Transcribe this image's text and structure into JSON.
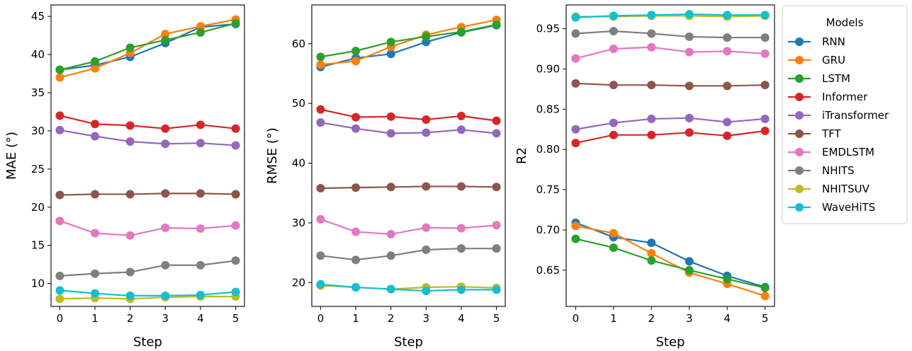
{
  "legend": {
    "title": "Models",
    "entries": [
      "RNN",
      "GRU",
      "LSTM",
      "Informer",
      "iTransformer",
      "TFT",
      "EMDLSTM",
      "NHITS",
      "NHITSUV",
      "WaveHiTS"
    ]
  },
  "colors": {
    "RNN": "#1f77b4",
    "GRU": "#ff7f0e",
    "LSTM": "#2ca02c",
    "Informer": "#d62728",
    "iTransformer": "#9467bd",
    "TFT": "#8c564b",
    "EMDLSTM": "#e377c2",
    "NHITS": "#7f7f7f",
    "NHITSUV": "#bcbd22",
    "WaveHiTS": "#17becf"
  },
  "chart_data": [
    {
      "type": "line",
      "xlabel": "Step",
      "ylabel": "MAE (°)",
      "x": [
        0,
        1,
        2,
        3,
        4,
        5
      ],
      "ylim": [
        7.0,
        46.5
      ],
      "yticks": [
        10,
        15,
        20,
        25,
        30,
        35,
        40,
        45
      ],
      "ytick_labels": [
        "10",
        "15",
        "20",
        "25",
        "30",
        "35",
        "40",
        "45"
      ],
      "xtick_labels": [
        "0",
        "1",
        "2",
        "3",
        "4",
        "5"
      ],
      "series": [
        {
          "name": "RNN",
          "values": [
            38.0,
            38.6,
            39.7,
            41.5,
            43.6,
            44.0
          ]
        },
        {
          "name": "GRU",
          "values": [
            37.0,
            38.2,
            40.2,
            42.7,
            43.7,
            44.6
          ]
        },
        {
          "name": "LSTM",
          "values": [
            38.0,
            39.1,
            40.9,
            41.9,
            42.9,
            44.1
          ]
        },
        {
          "name": "Informer",
          "values": [
            32.0,
            30.9,
            30.7,
            30.3,
            30.8,
            30.3
          ]
        },
        {
          "name": "iTransformer",
          "values": [
            30.1,
            29.3,
            28.6,
            28.3,
            28.4,
            28.1
          ]
        },
        {
          "name": "TFT",
          "values": [
            21.6,
            21.7,
            21.7,
            21.8,
            21.8,
            21.7
          ]
        },
        {
          "name": "EMDLSTM",
          "values": [
            18.2,
            16.6,
            16.3,
            17.3,
            17.2,
            17.6
          ]
        },
        {
          "name": "NHITS",
          "values": [
            11.0,
            11.3,
            11.5,
            12.4,
            12.4,
            13.0
          ]
        },
        {
          "name": "NHITSUV",
          "values": [
            8.0,
            8.1,
            8.0,
            8.2,
            8.3,
            8.3
          ]
        },
        {
          "name": "WaveHiTS",
          "values": [
            9.1,
            8.7,
            8.4,
            8.4,
            8.5,
            8.9
          ]
        }
      ]
    },
    {
      "type": "line",
      "xlabel": "Step",
      "ylabel": "RMSE (°)",
      "x": [
        0,
        1,
        2,
        3,
        4,
        5
      ],
      "ylim": [
        16.0,
        66.5
      ],
      "yticks": [
        20,
        30,
        40,
        50,
        60
      ],
      "ytick_labels": [
        "20",
        "30",
        "40",
        "50",
        "60"
      ],
      "xtick_labels": [
        "0",
        "1",
        "2",
        "3",
        "4",
        "5"
      ],
      "series": [
        {
          "name": "RNN",
          "values": [
            56.1,
            57.6,
            58.3,
            60.3,
            61.9,
            63.1
          ]
        },
        {
          "name": "GRU",
          "values": [
            56.5,
            57.1,
            59.5,
            61.5,
            62.8,
            64.0
          ]
        },
        {
          "name": "LSTM",
          "values": [
            57.8,
            58.8,
            60.3,
            61.2,
            62.0,
            63.2
          ]
        },
        {
          "name": "Informer",
          "values": [
            49.0,
            47.7,
            47.8,
            47.3,
            47.9,
            47.1
          ]
        },
        {
          "name": "iTransformer",
          "values": [
            46.8,
            45.8,
            45.0,
            45.1,
            45.6,
            45.0
          ]
        },
        {
          "name": "TFT",
          "values": [
            35.8,
            35.9,
            36.0,
            36.1,
            36.1,
            36.0
          ]
        },
        {
          "name": "EMDLSTM",
          "values": [
            30.6,
            28.5,
            28.1,
            29.2,
            29.1,
            29.6
          ]
        },
        {
          "name": "NHITS",
          "values": [
            24.5,
            23.8,
            24.5,
            25.5,
            25.7,
            25.7
          ]
        },
        {
          "name": "NHITSUV",
          "values": [
            19.5,
            19.2,
            18.9,
            19.2,
            19.3,
            19.1
          ]
        },
        {
          "name": "WaveHiTS",
          "values": [
            19.7,
            19.2,
            18.9,
            18.6,
            18.8,
            18.8
          ]
        }
      ]
    },
    {
      "type": "line",
      "xlabel": "Step",
      "ylabel": "R2",
      "x": [
        0,
        1,
        2,
        3,
        4,
        5
      ],
      "ylim": [
        0.605,
        0.9795
      ],
      "yticks": [
        0.65,
        0.7,
        0.75,
        0.8,
        0.85,
        0.9,
        0.95
      ],
      "ytick_labels": [
        "0.65",
        "0.70",
        "0.75",
        "0.80",
        "0.85",
        "0.90",
        "0.95"
      ],
      "xtick_labels": [
        "0",
        "1",
        "2",
        "3",
        "4",
        "5"
      ],
      "series": [
        {
          "name": "RNN",
          "values": [
            0.709,
            0.691,
            0.684,
            0.661,
            0.643,
            0.629
          ]
        },
        {
          "name": "GRU",
          "values": [
            0.705,
            0.696,
            0.671,
            0.647,
            0.633,
            0.618
          ]
        },
        {
          "name": "LSTM",
          "values": [
            0.689,
            0.678,
            0.662,
            0.65,
            0.639,
            0.628
          ]
        },
        {
          "name": "Informer",
          "values": [
            0.808,
            0.818,
            0.818,
            0.821,
            0.817,
            0.823
          ]
        },
        {
          "name": "iTransformer",
          "values": [
            0.825,
            0.833,
            0.838,
            0.839,
            0.834,
            0.838
          ]
        },
        {
          "name": "TFT",
          "values": [
            0.882,
            0.88,
            0.88,
            0.879,
            0.879,
            0.88
          ]
        },
        {
          "name": "EMDLSTM",
          "values": [
            0.913,
            0.925,
            0.927,
            0.921,
            0.922,
            0.919
          ]
        },
        {
          "name": "NHITS",
          "values": [
            0.944,
            0.947,
            0.944,
            0.94,
            0.939,
            0.939
          ]
        },
        {
          "name": "NHITSUV",
          "values": [
            0.965,
            0.965,
            0.966,
            0.966,
            0.965,
            0.966
          ]
        },
        {
          "name": "WaveHiTS",
          "values": [
            0.964,
            0.966,
            0.967,
            0.968,
            0.967,
            0.967
          ]
        }
      ]
    }
  ]
}
